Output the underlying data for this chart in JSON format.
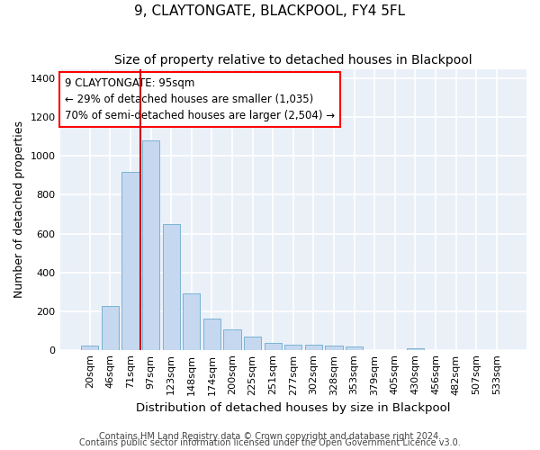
{
  "title": "9, CLAYTONGATE, BLACKPOOL, FY4 5FL",
  "subtitle": "Size of property relative to detached houses in Blackpool",
  "xlabel": "Distribution of detached houses by size in Blackpool",
  "ylabel": "Number of detached properties",
  "footnote1": "Contains HM Land Registry data © Crown copyright and database right 2024.",
  "footnote2": "Contains public sector information licensed under the Open Government Licence v3.0.",
  "categories": [
    "20sqm",
    "46sqm",
    "71sqm",
    "97sqm",
    "123sqm",
    "148sqm",
    "174sqm",
    "200sqm",
    "225sqm",
    "251sqm",
    "277sqm",
    "302sqm",
    "328sqm",
    "353sqm",
    "379sqm",
    "405sqm",
    "430sqm",
    "456sqm",
    "482sqm",
    "507sqm",
    "533sqm"
  ],
  "values": [
    20,
    225,
    920,
    1080,
    650,
    290,
    160,
    105,
    70,
    35,
    25,
    25,
    20,
    15,
    0,
    0,
    10,
    0,
    0,
    0,
    0
  ],
  "bar_color": "#c5d8f0",
  "bar_edge_color": "#7ab3d4",
  "background_color": "#eaf0f8",
  "grid_color": "#ffffff",
  "annotation_line1": "9 CLAYTONGATE: 95sqm",
  "annotation_line2": "← 29% of detached houses are smaller (1,035)",
  "annotation_line3": "70% of semi-detached houses are larger (2,504) →",
  "vline_color": "#cc0000",
  "vline_position": 2.5,
  "ylim": [
    0,
    1450
  ],
  "yticks": [
    0,
    200,
    400,
    600,
    800,
    1000,
    1200,
    1400
  ],
  "title_fontsize": 11,
  "subtitle_fontsize": 10,
  "xlabel_fontsize": 9.5,
  "ylabel_fontsize": 9,
  "tick_fontsize": 8,
  "annotation_fontsize": 8.5,
  "footnote_fontsize": 7
}
